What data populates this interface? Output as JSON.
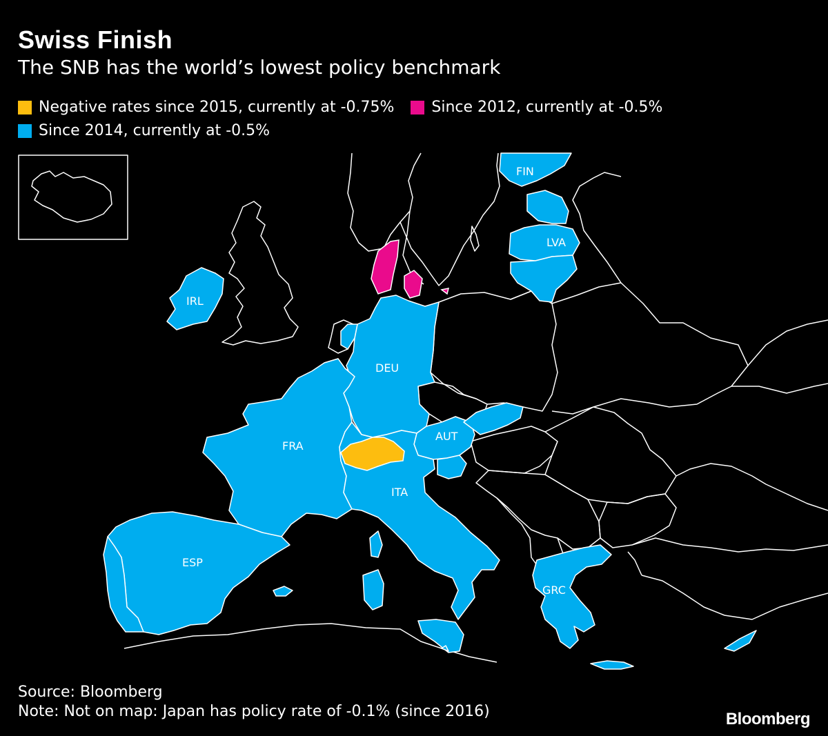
{
  "header": {
    "title": "Swiss Finish",
    "subtitle": "The SNB has the world’s lowest policy benchmark"
  },
  "legend": [
    {
      "label": "Negative rates since 2015, currently at -0.75%",
      "color": "#fdbd0f"
    },
    {
      "label": "Since 2012, currently at -0.5%",
      "color": "#ea0b8c"
    },
    {
      "label": "Since 2014, currently at -0.5%",
      "color": "#00adef"
    }
  ],
  "map": {
    "outline_color": "#ffffff",
    "countries": [
      {
        "code": "FIN",
        "group": 2
      },
      {
        "code": "LVA",
        "group": 2
      },
      {
        "code": "IRL",
        "group": 2
      },
      {
        "code": "DEU",
        "group": 2
      },
      {
        "code": "FRA",
        "group": 2
      },
      {
        "code": "AUT",
        "group": 2
      },
      {
        "code": "ITA",
        "group": 2
      },
      {
        "code": "ESP",
        "group": 2
      },
      {
        "code": "GRC",
        "group": 2
      }
    ]
  },
  "footer": {
    "source": "Source: Bloomberg",
    "note": "Note: Not on map: Japan has policy rate of -0.1% (since 2016)",
    "brand": "Bloomberg"
  }
}
